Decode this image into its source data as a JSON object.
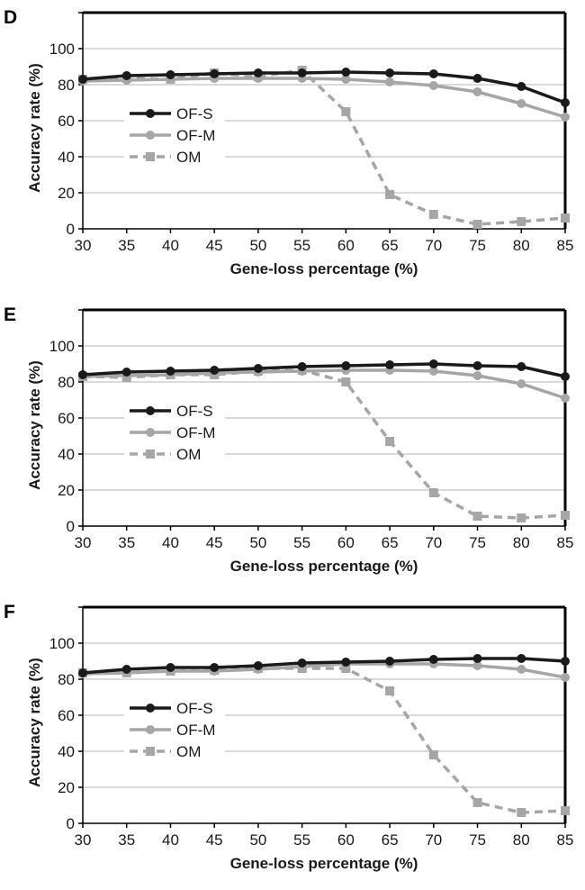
{
  "chart_data": [
    {
      "type": "line",
      "panel": "D",
      "xlabel": "Gene-loss percentage (%)",
      "ylabel": "Accuracy rate (%)",
      "x": [
        30,
        35,
        40,
        45,
        50,
        55,
        60,
        65,
        70,
        75,
        80,
        85
      ],
      "xlim": [
        30,
        85
      ],
      "ylim": [
        0,
        120
      ],
      "yticks": [
        0,
        20,
        40,
        60,
        80,
        100
      ],
      "grid": true,
      "legend": "left",
      "series": [
        {
          "name": "OF-S",
          "values": [
            83,
            85,
            85.5,
            86,
            86.5,
            86.5,
            87,
            86.5,
            86,
            83.5,
            79,
            70
          ],
          "color": "#1a1a1a",
          "style": "solid",
          "marker": "circle"
        },
        {
          "name": "OF-M",
          "values": [
            82,
            82.5,
            83,
            83.5,
            83.5,
            83.5,
            83,
            81.5,
            79.5,
            76,
            69.5,
            62
          ],
          "color": "#a6a6a6",
          "style": "solid",
          "marker": "circle"
        },
        {
          "name": "OM",
          "values": [
            83,
            83.5,
            83,
            86.5,
            84.5,
            88,
            65,
            19,
            8,
            2.5,
            4,
            6
          ],
          "color": "#a6a6a6",
          "style": "dashed",
          "marker": "square"
        }
      ]
    },
    {
      "type": "line",
      "panel": "E",
      "xlabel": "Gene-loss percentage (%)",
      "ylabel": "Accuracy rate (%)",
      "x": [
        30,
        35,
        40,
        45,
        50,
        55,
        60,
        65,
        70,
        75,
        80,
        85
      ],
      "xlim": [
        30,
        85
      ],
      "ylim": [
        0,
        120
      ],
      "yticks": [
        0,
        20,
        40,
        60,
        80,
        100
      ],
      "grid": true,
      "legend": "left",
      "series": [
        {
          "name": "OF-S",
          "values": [
            84,
            85.5,
            86,
            86.5,
            87.5,
            88.5,
            89,
            89.5,
            90,
            89,
            88.5,
            83
          ],
          "color": "#1a1a1a",
          "style": "solid",
          "marker": "circle"
        },
        {
          "name": "OF-M",
          "values": [
            83,
            83.5,
            84,
            85,
            85.5,
            86,
            86.5,
            86.5,
            86,
            83.5,
            79,
            71
          ],
          "color": "#a6a6a6",
          "style": "solid",
          "marker": "circle"
        },
        {
          "name": "OM",
          "values": [
            83,
            82.5,
            84,
            84,
            86,
            86.5,
            80,
            47,
            18.5,
            5.5,
            4.5,
            6
          ],
          "color": "#a6a6a6",
          "style": "dashed",
          "marker": "square"
        }
      ]
    },
    {
      "type": "line",
      "panel": "F",
      "xlabel": "Gene-loss percentage (%)",
      "ylabel": "Accuracy rate (%)",
      "x": [
        30,
        35,
        40,
        45,
        50,
        55,
        60,
        65,
        70,
        75,
        80,
        85
      ],
      "xlim": [
        30,
        85
      ],
      "ylim": [
        0,
        120
      ],
      "yticks": [
        0,
        20,
        40,
        60,
        80,
        100
      ],
      "grid": true,
      "legend": "left",
      "series": [
        {
          "name": "OF-S",
          "values": [
            83.5,
            85.5,
            86.5,
            86.5,
            87.5,
            89,
            89.5,
            90,
            91,
            91.5,
            91.5,
            90
          ],
          "color": "#1a1a1a",
          "style": "solid",
          "marker": "circle"
        },
        {
          "name": "OF-M",
          "values": [
            83,
            83.5,
            84.5,
            84.5,
            85.5,
            87,
            88.5,
            88.5,
            88.5,
            87.5,
            85.5,
            81
          ],
          "color": "#a6a6a6",
          "style": "solid",
          "marker": "circle"
        },
        {
          "name": "OM",
          "values": [
            83.5,
            83.5,
            84.5,
            85,
            86,
            86,
            86,
            73.5,
            38,
            11.5,
            6,
            7
          ],
          "color": "#a6a6a6",
          "style": "dashed",
          "marker": "square"
        }
      ]
    }
  ]
}
